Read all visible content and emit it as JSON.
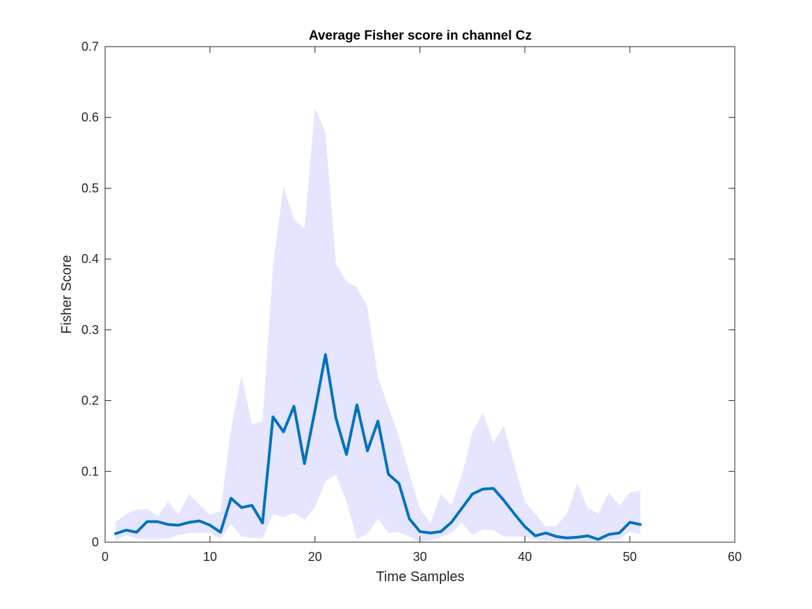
{
  "chart_data": {
    "type": "line",
    "title": "Average Fisher score in channel Cz",
    "xlabel": "Time Samples",
    "ylabel": "Fisher Score",
    "xlim": [
      0,
      60
    ],
    "ylim": [
      0,
      0.7
    ],
    "xticks": [
      0,
      10,
      20,
      30,
      40,
      50,
      60
    ],
    "yticks": [
      0,
      0.1,
      0.2,
      0.3,
      0.4,
      0.5,
      0.6,
      0.7
    ],
    "xtick_labels": [
      "0",
      "10",
      "20",
      "30",
      "40",
      "50",
      "60"
    ],
    "ytick_labels": [
      "0",
      "0.1",
      "0.2",
      "0.3",
      "0.4",
      "0.5",
      "0.6",
      "0.7"
    ],
    "grid": false,
    "colors": {
      "line": "#0072BD",
      "band": "#E5E5FF",
      "axes": "#262626"
    },
    "x": [
      1,
      2,
      3,
      4,
      5,
      6,
      7,
      8,
      9,
      10,
      11,
      12,
      13,
      14,
      15,
      16,
      17,
      18,
      19,
      20,
      21,
      22,
      23,
      24,
      25,
      26,
      27,
      28,
      29,
      30,
      31,
      32,
      33,
      34,
      35,
      36,
      37,
      38,
      39,
      40,
      41,
      42,
      43,
      44,
      45,
      46,
      47,
      48,
      49,
      50,
      51
    ],
    "series": [
      {
        "values": [
          0.012,
          0.017,
          0.014,
          0.029,
          0.029,
          0.025,
          0.024,
          0.028,
          0.03,
          0.024,
          0.014,
          0.062,
          0.049,
          0.052,
          0.027,
          0.177,
          0.156,
          0.192,
          0.111,
          0.186,
          0.265,
          0.175,
          0.124,
          0.194,
          0.129,
          0.171,
          0.096,
          0.083,
          0.033,
          0.015,
          0.013,
          0.015,
          0.028,
          0.048,
          0.068,
          0.075,
          0.076,
          0.059,
          0.04,
          0.022,
          0.009,
          0.013,
          0.008,
          0.006,
          0.007,
          0.009,
          0.004,
          0.011,
          0.013,
          0.028,
          0.025
        ],
        "upper": [
          0.028,
          0.04,
          0.046,
          0.047,
          0.037,
          0.057,
          0.039,
          0.068,
          0.053,
          0.039,
          0.044,
          0.16,
          0.235,
          0.167,
          0.17,
          0.39,
          0.502,
          0.456,
          0.443,
          0.614,
          0.578,
          0.393,
          0.368,
          0.36,
          0.332,
          0.233,
          0.191,
          0.149,
          0.097,
          0.047,
          0.027,
          0.068,
          0.052,
          0.095,
          0.155,
          0.183,
          0.141,
          0.164,
          0.11,
          0.057,
          0.04,
          0.022,
          0.023,
          0.04,
          0.083,
          0.048,
          0.04,
          0.07,
          0.052,
          0.07,
          0.073
        ],
        "lower": [
          0.002,
          0.01,
          0.005,
          0.004,
          0.004,
          0.005,
          0.01,
          0.013,
          0.013,
          0.013,
          0.005,
          0.026,
          0.008,
          0.006,
          0.005,
          0.04,
          0.035,
          0.041,
          0.032,
          0.049,
          0.086,
          0.095,
          0.058,
          0.004,
          0.012,
          0.033,
          0.013,
          0.014,
          0.008,
          0.0,
          0.003,
          0.007,
          0.013,
          0.028,
          0.01,
          0.018,
          0.017,
          0.008,
          0.008,
          0.008,
          0.003,
          0.001,
          0.002,
          0.001,
          0.001,
          0.001,
          0.001,
          0.003,
          0.004,
          0.015,
          0.011
        ]
      }
    ]
  }
}
